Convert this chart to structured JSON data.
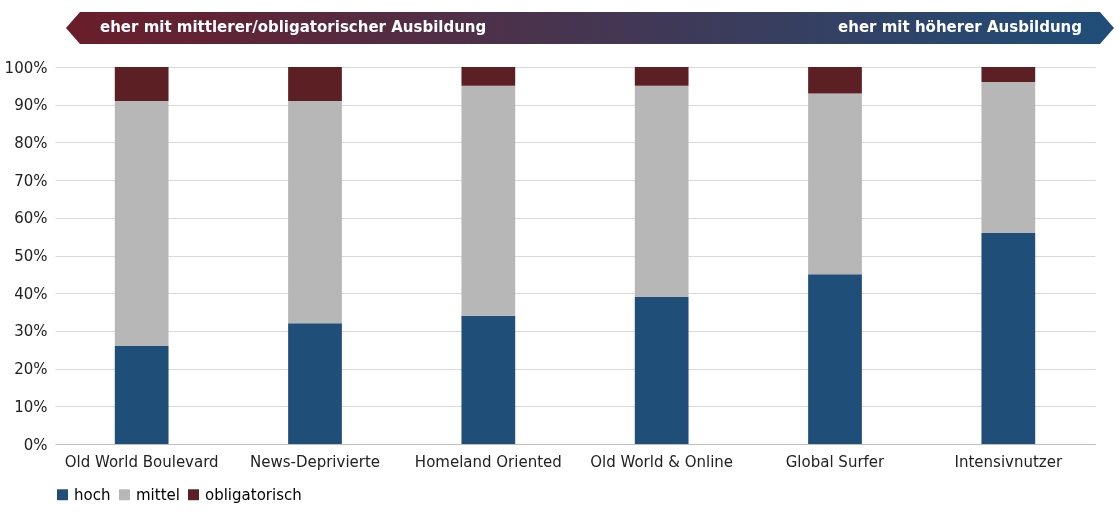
{
  "chart_data": {
    "type": "bar",
    "stacked": true,
    "categories": [
      "Old World Boulevard",
      "News-Deprivierte",
      "Homeland Oriented",
      "Old World & Online",
      "Global Surfer",
      "Intensivnutzer"
    ],
    "series": [
      {
        "name": "hoch",
        "color": "#1f4e79",
        "values": [
          26,
          32,
          34,
          39,
          45,
          56
        ]
      },
      {
        "name": "mittel",
        "color": "#b7b7b7",
        "values": [
          65,
          59,
          61,
          56,
          48,
          40
        ]
      },
      {
        "name": "obligatorisch",
        "color": "#5c1f24",
        "values": [
          9,
          9,
          5,
          5,
          7,
          4
        ]
      }
    ],
    "ylim": [
      0,
      100
    ],
    "yticks": [
      {
        "value": 0,
        "label": "0%"
      },
      {
        "value": 10,
        "label": "10%"
      },
      {
        "value": 20,
        "label": "20%"
      },
      {
        "value": 30,
        "label": "30%"
      },
      {
        "value": 40,
        "label": "40%"
      },
      {
        "value": 50,
        "label": "50%"
      },
      {
        "value": 60,
        "label": "60%"
      },
      {
        "value": 70,
        "label": "70%"
      },
      {
        "value": 80,
        "label": "80%"
      },
      {
        "value": 90,
        "label": "90%"
      },
      {
        "value": 100,
        "label": "100%"
      }
    ],
    "grid": "y",
    "legend": "bottom",
    "annotations": [
      "eher mit mittlerer/obligatorischer Ausbildung",
      "eher mit höherer Ausbildung"
    ]
  }
}
